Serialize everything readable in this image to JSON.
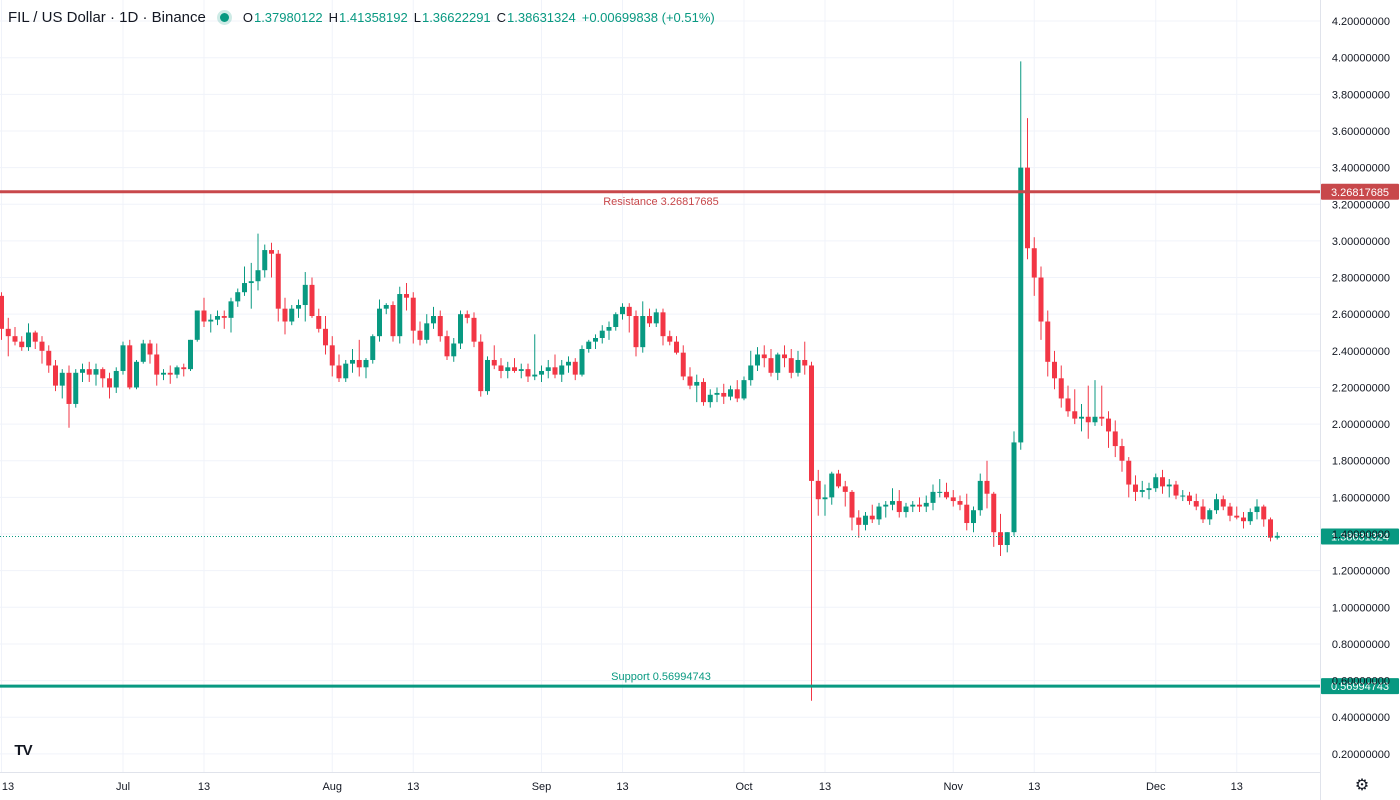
{
  "header": {
    "symbol": "FIL / US Dollar · 1D · Binance",
    "open_key": "O",
    "open": "1.37980122",
    "high_key": "H",
    "high": "1.41358192",
    "low_key": "L",
    "low": "1.36622291",
    "close_key": "C",
    "close": "1.38631324",
    "change": "+0.00699838 (+0.51%)"
  },
  "logo_text": "TV",
  "colors": {
    "up": "#089981",
    "down": "#F23645",
    "resistance": "#C8484B",
    "support": "#089981"
  },
  "chart_data": {
    "type": "candlestick",
    "ylim": [
      0.1,
      4.3
    ],
    "y_ticks": [
      "4.20000000",
      "4.00000000",
      "3.80000000",
      "3.60000000",
      "3.40000000",
      "3.20000000",
      "3.00000000",
      "2.80000000",
      "2.60000000",
      "2.40000000",
      "2.20000000",
      "2.00000000",
      "1.80000000",
      "1.60000000",
      "1.40000000",
      "1.20000000",
      "1.00000000",
      "0.80000000",
      "0.60000000",
      "0.40000000",
      "0.20000000"
    ],
    "y_tick_values": [
      4.2,
      4.0,
      3.8,
      3.6,
      3.4,
      3.2,
      3.0,
      2.8,
      2.6,
      2.4,
      2.2,
      2.0,
      1.8,
      1.6,
      1.4,
      1.2,
      1.0,
      0.8,
      0.6,
      0.4,
      0.2
    ],
    "x_ticks": [
      {
        "label": "13",
        "day": 0
      },
      {
        "label": "Jul",
        "day": 18
      },
      {
        "label": "13",
        "day": 30
      },
      {
        "label": "Aug",
        "day": 49
      },
      {
        "label": "13",
        "day": 61
      },
      {
        "label": "Sep",
        "day": 80
      },
      {
        "label": "13",
        "day": 92
      },
      {
        "label": "Oct",
        "day": 110
      },
      {
        "label": "13",
        "day": 122
      },
      {
        "label": "Nov",
        "day": 141
      },
      {
        "label": "13",
        "day": 153
      },
      {
        "label": "Dec",
        "day": 171
      },
      {
        "label": "13",
        "day": 183
      }
    ],
    "resistance": {
      "label": "Resistance 3.26817685",
      "value": 3.26817685,
      "tag": "3.26817685"
    },
    "support": {
      "label": "Support 0.56994743",
      "value": 0.56994743,
      "tag": "0.56994743"
    },
    "last_price": {
      "value": 1.38631324,
      "tag": "1.38631324"
    },
    "candles": [
      [
        2.7,
        2.72,
        2.46,
        2.52
      ],
      [
        2.52,
        2.58,
        2.37,
        2.48
      ],
      [
        2.48,
        2.53,
        2.43,
        2.45
      ],
      [
        2.45,
        2.48,
        2.4,
        2.42
      ],
      [
        2.42,
        2.55,
        2.4,
        2.5
      ],
      [
        2.5,
        2.51,
        2.41,
        2.45
      ],
      [
        2.45,
        2.48,
        2.33,
        2.4
      ],
      [
        2.4,
        2.43,
        2.28,
        2.32
      ],
      [
        2.32,
        2.35,
        2.18,
        2.21
      ],
      [
        2.21,
        2.3,
        2.14,
        2.28
      ],
      [
        2.28,
        2.32,
        1.98,
        2.11
      ],
      [
        2.11,
        2.3,
        2.09,
        2.28
      ],
      [
        2.28,
        2.33,
        2.23,
        2.3
      ],
      [
        2.3,
        2.34,
        2.23,
        2.27
      ],
      [
        2.27,
        2.33,
        2.21,
        2.3
      ],
      [
        2.3,
        2.31,
        2.2,
        2.25
      ],
      [
        2.25,
        2.28,
        2.14,
        2.2
      ],
      [
        2.2,
        2.31,
        2.17,
        2.29
      ],
      [
        2.29,
        2.45,
        2.27,
        2.43
      ],
      [
        2.43,
        2.46,
        2.19,
        2.2
      ],
      [
        2.2,
        2.35,
        2.19,
        2.34
      ],
      [
        2.34,
        2.46,
        2.33,
        2.44
      ],
      [
        2.44,
        2.46,
        2.33,
        2.38
      ],
      [
        2.38,
        2.44,
        2.21,
        2.27
      ],
      [
        2.27,
        2.3,
        2.24,
        2.28
      ],
      [
        2.28,
        2.32,
        2.22,
        2.27
      ],
      [
        2.27,
        2.32,
        2.25,
        2.31
      ],
      [
        2.31,
        2.33,
        2.26,
        2.3
      ],
      [
        2.3,
        2.46,
        2.29,
        2.46
      ],
      [
        2.46,
        2.62,
        2.45,
        2.62
      ],
      [
        2.62,
        2.69,
        2.53,
        2.56
      ],
      [
        2.56,
        2.6,
        2.5,
        2.57
      ],
      [
        2.57,
        2.62,
        2.54,
        2.59
      ],
      [
        2.59,
        2.62,
        2.52,
        2.58
      ],
      [
        2.58,
        2.69,
        2.5,
        2.67
      ],
      [
        2.67,
        2.74,
        2.64,
        2.72
      ],
      [
        2.72,
        2.86,
        2.7,
        2.77
      ],
      [
        2.77,
        2.88,
        2.63,
        2.78
      ],
      [
        2.78,
        3.04,
        2.73,
        2.84
      ],
      [
        2.84,
        2.98,
        2.8,
        2.95
      ],
      [
        2.95,
        2.99,
        2.8,
        2.93
      ],
      [
        2.93,
        2.95,
        2.56,
        2.63
      ],
      [
        2.63,
        2.69,
        2.49,
        2.56
      ],
      [
        2.56,
        2.65,
        2.54,
        2.63
      ],
      [
        2.63,
        2.68,
        2.58,
        2.65
      ],
      [
        2.65,
        2.83,
        2.56,
        2.76
      ],
      [
        2.76,
        2.8,
        2.58,
        2.59
      ],
      [
        2.59,
        2.63,
        2.5,
        2.52
      ],
      [
        2.52,
        2.59,
        2.38,
        2.43
      ],
      [
        2.43,
        2.48,
        2.26,
        2.32
      ],
      [
        2.32,
        2.38,
        2.23,
        2.25
      ],
      [
        2.25,
        2.35,
        2.23,
        2.33
      ],
      [
        2.33,
        2.41,
        2.28,
        2.35
      ],
      [
        2.35,
        2.46,
        2.26,
        2.31
      ],
      [
        2.31,
        2.36,
        2.25,
        2.35
      ],
      [
        2.35,
        2.49,
        2.33,
        2.48
      ],
      [
        2.48,
        2.68,
        2.45,
        2.63
      ],
      [
        2.63,
        2.66,
        2.6,
        2.65
      ],
      [
        2.65,
        2.67,
        2.45,
        2.48
      ],
      [
        2.48,
        2.75,
        2.44,
        2.71
      ],
      [
        2.71,
        2.77,
        2.62,
        2.69
      ],
      [
        2.69,
        2.72,
        2.44,
        2.51
      ],
      [
        2.51,
        2.56,
        2.43,
        2.46
      ],
      [
        2.46,
        2.6,
        2.44,
        2.55
      ],
      [
        2.55,
        2.64,
        2.52,
        2.59
      ],
      [
        2.59,
        2.62,
        2.45,
        2.48
      ],
      [
        2.48,
        2.51,
        2.35,
        2.37
      ],
      [
        2.37,
        2.47,
        2.34,
        2.44
      ],
      [
        2.44,
        2.62,
        2.41,
        2.6
      ],
      [
        2.6,
        2.62,
        2.55,
        2.58
      ],
      [
        2.58,
        2.61,
        2.42,
        2.45
      ],
      [
        2.45,
        2.49,
        2.15,
        2.18
      ],
      [
        2.18,
        2.37,
        2.16,
        2.35
      ],
      [
        2.35,
        2.43,
        2.3,
        2.32
      ],
      [
        2.32,
        2.36,
        2.25,
        2.29
      ],
      [
        2.29,
        2.34,
        2.25,
        2.31
      ],
      [
        2.31,
        2.36,
        2.28,
        2.29
      ],
      [
        2.29,
        2.33,
        2.25,
        2.3
      ],
      [
        2.3,
        2.33,
        2.23,
        2.26
      ],
      [
        2.26,
        2.49,
        2.24,
        2.27
      ],
      [
        2.27,
        2.32,
        2.23,
        2.29
      ],
      [
        2.29,
        2.35,
        2.25,
        2.31
      ],
      [
        2.31,
        2.38,
        2.25,
        2.27
      ],
      [
        2.27,
        2.35,
        2.23,
        2.32
      ],
      [
        2.32,
        2.37,
        2.28,
        2.34
      ],
      [
        2.34,
        2.36,
        2.24,
        2.27
      ],
      [
        2.27,
        2.43,
        2.26,
        2.41
      ],
      [
        2.41,
        2.46,
        2.39,
        2.45
      ],
      [
        2.45,
        2.49,
        2.41,
        2.47
      ],
      [
        2.47,
        2.54,
        2.44,
        2.51
      ],
      [
        2.51,
        2.56,
        2.46,
        2.53
      ],
      [
        2.53,
        2.61,
        2.51,
        2.6
      ],
      [
        2.6,
        2.66,
        2.57,
        2.64
      ],
      [
        2.64,
        2.66,
        2.5,
        2.59
      ],
      [
        2.59,
        2.62,
        2.37,
        2.42
      ],
      [
        2.42,
        2.67,
        2.39,
        2.59
      ],
      [
        2.59,
        2.63,
        2.53,
        2.55
      ],
      [
        2.55,
        2.63,
        2.53,
        2.61
      ],
      [
        2.61,
        2.63,
        2.43,
        2.48
      ],
      [
        2.48,
        2.51,
        2.43,
        2.45
      ],
      [
        2.45,
        2.48,
        2.38,
        2.39
      ],
      [
        2.39,
        2.43,
        2.24,
        2.26
      ],
      [
        2.26,
        2.31,
        2.19,
        2.21
      ],
      [
        2.21,
        2.27,
        2.12,
        2.23
      ],
      [
        2.23,
        2.25,
        2.1,
        2.12
      ],
      [
        2.12,
        2.19,
        2.09,
        2.16
      ],
      [
        2.16,
        2.2,
        2.12,
        2.17
      ],
      [
        2.17,
        2.22,
        2.11,
        2.15
      ],
      [
        2.15,
        2.21,
        2.13,
        2.19
      ],
      [
        2.19,
        2.24,
        2.12,
        2.14
      ],
      [
        2.14,
        2.26,
        2.13,
        2.24
      ],
      [
        2.24,
        2.4,
        2.21,
        2.32
      ],
      [
        2.32,
        2.42,
        2.29,
        2.38
      ],
      [
        2.38,
        2.43,
        2.31,
        2.36
      ],
      [
        2.36,
        2.41,
        2.26,
        2.28
      ],
      [
        2.28,
        2.39,
        2.24,
        2.38
      ],
      [
        2.38,
        2.43,
        2.31,
        2.36
      ],
      [
        2.36,
        2.41,
        2.25,
        2.28
      ],
      [
        2.28,
        2.4,
        2.26,
        2.35
      ],
      [
        2.35,
        2.45,
        2.27,
        2.32
      ],
      [
        2.32,
        2.34,
        0.49,
        1.69
      ],
      [
        1.69,
        1.75,
        1.5,
        1.59
      ],
      [
        1.59,
        1.67,
        1.5,
        1.6
      ],
      [
        1.6,
        1.74,
        1.56,
        1.73
      ],
      [
        1.73,
        1.75,
        1.65,
        1.66
      ],
      [
        1.66,
        1.69,
        1.55,
        1.63
      ],
      [
        1.63,
        1.64,
        1.42,
        1.49
      ],
      [
        1.49,
        1.53,
        1.38,
        1.45
      ],
      [
        1.45,
        1.52,
        1.42,
        1.5
      ],
      [
        1.5,
        1.56,
        1.46,
        1.48
      ],
      [
        1.48,
        1.57,
        1.45,
        1.55
      ],
      [
        1.55,
        1.58,
        1.49,
        1.56
      ],
      [
        1.56,
        1.65,
        1.53,
        1.58
      ],
      [
        1.58,
        1.64,
        1.49,
        1.52
      ],
      [
        1.52,
        1.57,
        1.49,
        1.55
      ],
      [
        1.55,
        1.58,
        1.52,
        1.56
      ],
      [
        1.56,
        1.6,
        1.52,
        1.55
      ],
      [
        1.55,
        1.61,
        1.52,
        1.57
      ],
      [
        1.57,
        1.67,
        1.53,
        1.63
      ],
      [
        1.63,
        1.7,
        1.6,
        1.63
      ],
      [
        1.63,
        1.68,
        1.59,
        1.6
      ],
      [
        1.6,
        1.64,
        1.55,
        1.58
      ],
      [
        1.58,
        1.61,
        1.53,
        1.56
      ],
      [
        1.56,
        1.62,
        1.42,
        1.46
      ],
      [
        1.46,
        1.55,
        1.41,
        1.53
      ],
      [
        1.53,
        1.73,
        1.5,
        1.69
      ],
      [
        1.69,
        1.8,
        1.54,
        1.62
      ],
      [
        1.62,
        1.63,
        1.33,
        1.41
      ],
      [
        1.41,
        1.51,
        1.28,
        1.34
      ],
      [
        1.34,
        1.41,
        1.3,
        1.41
      ],
      [
        1.41,
        1.96,
        1.39,
        1.9
      ],
      [
        1.9,
        3.98,
        1.86,
        3.4
      ],
      [
        3.4,
        3.67,
        2.9,
        2.96
      ],
      [
        2.96,
        3.02,
        2.7,
        2.8
      ],
      [
        2.8,
        2.86,
        2.46,
        2.56
      ],
      [
        2.56,
        2.62,
        2.26,
        2.34
      ],
      [
        2.34,
        2.4,
        2.19,
        2.25
      ],
      [
        2.25,
        2.32,
        2.09,
        2.14
      ],
      [
        2.14,
        2.21,
        2.04,
        2.07
      ],
      [
        2.07,
        2.19,
        2.0,
        2.03
      ],
      [
        2.03,
        2.11,
        1.96,
        2.04
      ],
      [
        2.04,
        2.21,
        1.92,
        2.01
      ],
      [
        2.01,
        2.24,
        1.99,
        2.04
      ],
      [
        2.04,
        2.21,
        1.99,
        2.03
      ],
      [
        2.03,
        2.07,
        1.87,
        1.96
      ],
      [
        1.96,
        2.02,
        1.82,
        1.88
      ],
      [
        1.88,
        1.92,
        1.74,
        1.8
      ],
      [
        1.8,
        1.82,
        1.6,
        1.67
      ],
      [
        1.67,
        1.72,
        1.58,
        1.63
      ],
      [
        1.63,
        1.69,
        1.6,
        1.64
      ],
      [
        1.64,
        1.68,
        1.59,
        1.65
      ],
      [
        1.65,
        1.73,
        1.63,
        1.71
      ],
      [
        1.71,
        1.75,
        1.62,
        1.66
      ],
      [
        1.66,
        1.7,
        1.6,
        1.67
      ],
      [
        1.67,
        1.69,
        1.59,
        1.61
      ],
      [
        1.61,
        1.64,
        1.58,
        1.61
      ],
      [
        1.61,
        1.63,
        1.56,
        1.58
      ],
      [
        1.58,
        1.62,
        1.53,
        1.55
      ],
      [
        1.55,
        1.59,
        1.46,
        1.48
      ],
      [
        1.48,
        1.54,
        1.45,
        1.53
      ],
      [
        1.53,
        1.62,
        1.51,
        1.59
      ],
      [
        1.59,
        1.61,
        1.53,
        1.55
      ],
      [
        1.55,
        1.57,
        1.47,
        1.5
      ],
      [
        1.5,
        1.55,
        1.48,
        1.49
      ],
      [
        1.49,
        1.52,
        1.43,
        1.47
      ],
      [
        1.47,
        1.54,
        1.45,
        1.52
      ],
      [
        1.52,
        1.59,
        1.48,
        1.55
      ],
      [
        1.55,
        1.56,
        1.44,
        1.48
      ],
      [
        1.48,
        1.49,
        1.36,
        1.38
      ],
      [
        1.38,
        1.41,
        1.37,
        1.39
      ]
    ]
  }
}
